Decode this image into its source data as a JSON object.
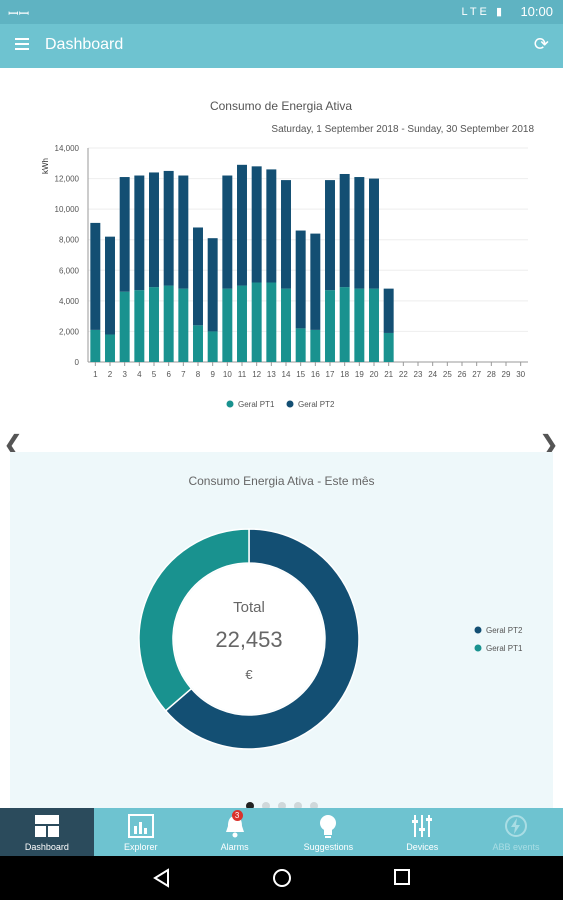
{
  "status_bar": {
    "time": "10:00",
    "network": "LTE"
  },
  "app_bar": {
    "title": "Dashboard"
  },
  "chart_data": [
    {
      "type": "bar",
      "title": "Consumo de Energia Ativa",
      "subtitle": "Saturday, 1 September 2018 - Sunday, 30 September 2018",
      "ylabel": "kWh",
      "ylim": [
        0,
        14000
      ],
      "yticks": [
        "0",
        "2,000",
        "4,000",
        "6,000",
        "8,000",
        "10,000",
        "12,000",
        "14,000"
      ],
      "categories": [
        "1",
        "2",
        "3",
        "4",
        "5",
        "6",
        "7",
        "8",
        "9",
        "10",
        "11",
        "12",
        "13",
        "14",
        "15",
        "16",
        "17",
        "18",
        "19",
        "20",
        "21",
        "22",
        "23",
        "24",
        "25",
        "26",
        "27",
        "28",
        "29",
        "30"
      ],
      "stacked": true,
      "series": [
        {
          "name": "Geral PT1",
          "color": "#19928f",
          "values": [
            2100,
            1800,
            4600,
            4700,
            4900,
            5000,
            4800,
            2400,
            2000,
            4800,
            5000,
            5200,
            5200,
            4800,
            2200,
            2100,
            4700,
            4900,
            4800,
            4800,
            1900,
            0,
            0,
            0,
            0,
            0,
            0,
            0,
            0,
            0
          ]
        },
        {
          "name": "Geral PT2",
          "color": "#134f73",
          "values": [
            7000,
            6400,
            7500,
            7500,
            7500,
            7500,
            7400,
            6400,
            6100,
            7400,
            7900,
            7600,
            7400,
            7100,
            6400,
            6300,
            7200,
            7400,
            7300,
            7200,
            2900,
            0,
            0,
            0,
            0,
            0,
            0,
            0,
            0,
            0
          ]
        }
      ],
      "legend_position": "bottom"
    },
    {
      "type": "pie",
      "title": "Consumo Energia Ativa - Este mês",
      "center_label": "Total",
      "center_value": "22,453",
      "center_unit": "€",
      "series": [
        {
          "name": "Geral PT2",
          "color": "#134f73",
          "value": 14300
        },
        {
          "name": "Geral PT1",
          "color": "#19928f",
          "value": 8153
        }
      ],
      "legend_position": "right"
    }
  ],
  "pager": {
    "pages": 5,
    "active": 0
  },
  "bottom_nav": {
    "items": [
      {
        "label": "Dashboard",
        "icon": "dashboard-icon"
      },
      {
        "label": "Explorer",
        "icon": "explorer-icon"
      },
      {
        "label": "Alarms",
        "icon": "bell-icon",
        "badge": "3"
      },
      {
        "label": "Suggestions",
        "icon": "lightbulb-icon"
      },
      {
        "label": "Devices",
        "icon": "sliders-icon"
      },
      {
        "label": "ABB events",
        "icon": "lightning-icon"
      }
    ]
  }
}
